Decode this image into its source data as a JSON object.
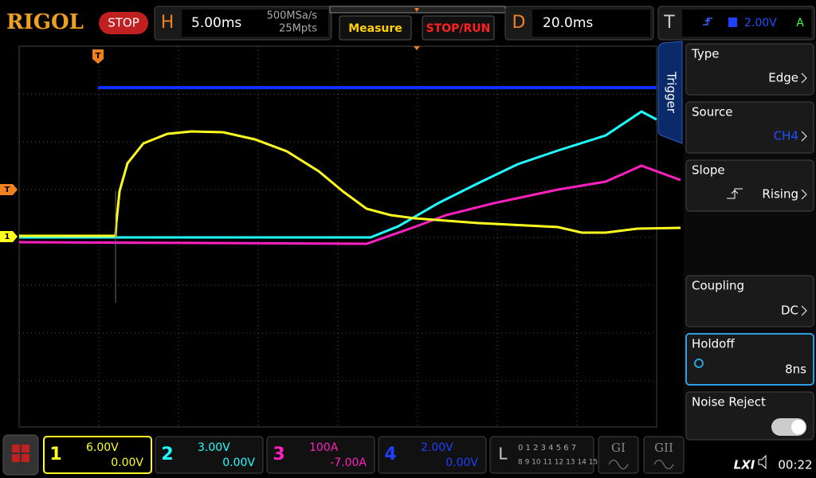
{
  "header": {
    "logo": "RIGOL",
    "status": "STOP",
    "horizontal": {
      "label": "H",
      "timebase": "5.00ms",
      "sample_rate": "500MSa/s",
      "memory_depth": "25Mpts"
    },
    "buttons": [
      "Measure",
      "STOP/RUN"
    ],
    "delay": {
      "label": "D",
      "value": "20.0ms"
    },
    "trigger": {
      "label": "T",
      "level": "2.00V",
      "mode": "A"
    }
  },
  "markers": {
    "trigger_position": "T",
    "trigger_level": "T",
    "channel1": "1"
  },
  "menu": {
    "tab": "Trigger",
    "items": [
      {
        "label": "Type",
        "value": "Edge"
      },
      {
        "label": "Source",
        "value": "CH4"
      },
      {
        "label": "Slope",
        "value": "Rising"
      },
      {
        "label": "Coupling",
        "value": "DC"
      },
      {
        "label": "Holdoff",
        "value": "8ns"
      },
      {
        "label": "Noise Reject"
      }
    ]
  },
  "channels": [
    {
      "number": "1",
      "scale": "6.00V",
      "offset": "0.00V"
    },
    {
      "number": "2",
      "scale": "3.00V",
      "offset": "0.00V"
    },
    {
      "number": "3",
      "scale": "100A",
      "offset": "-7.00A"
    },
    {
      "number": "4",
      "scale": "2.00V",
      "offset": "0.00V"
    }
  ],
  "logic": {
    "label": "L",
    "row1": "0 1 2 3 4 5 6 7",
    "row2": "8 9 10 11 12 13 14 15"
  },
  "generators": [
    "GI",
    "GII"
  ],
  "status_bar": {
    "lxi": "LXI",
    "time": "00:22"
  }
}
